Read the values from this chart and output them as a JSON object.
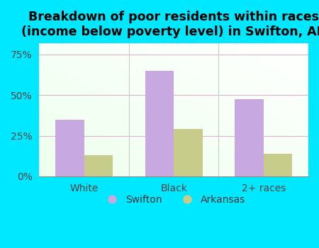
{
  "title": "Breakdown of poor residents within races\n(income below poverty level) in Swifton, AR",
  "categories": [
    "White",
    "Black",
    "2+ races"
  ],
  "swifton_values": [
    0.35,
    0.65,
    0.475
  ],
  "arkansas_values": [
    0.13,
    0.29,
    0.14
  ],
  "swifton_color": "#c8a8e0",
  "arkansas_color": "#c8cc8a",
  "ylim": [
    0,
    0.82
  ],
  "yticks": [
    0.0,
    0.25,
    0.5,
    0.75
  ],
  "ytick_labels": [
    "0%",
    "25%",
    "50%",
    "75%"
  ],
  "bar_width": 0.32,
  "background_color": "#00e8ff",
  "title_fontsize": 12.5,
  "tick_fontsize": 10,
  "legend_labels": [
    "Swifton",
    "Arkansas"
  ],
  "grid_color": "#e0b0d0",
  "separator_color": "#cccccc"
}
